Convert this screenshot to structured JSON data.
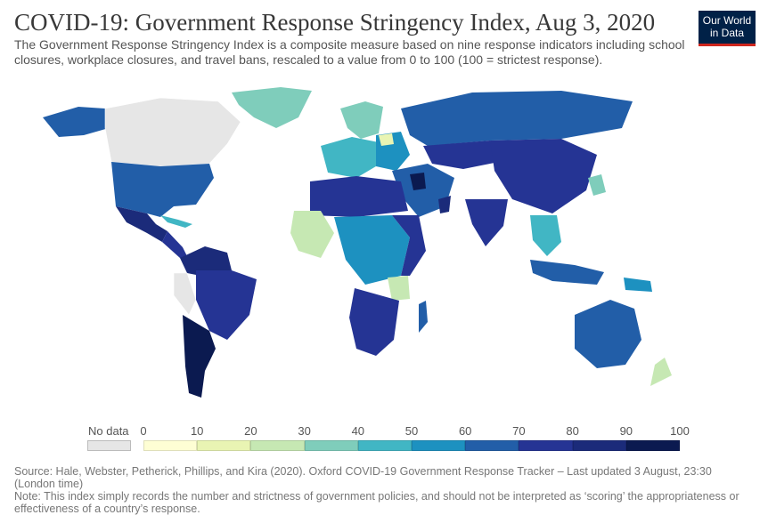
{
  "title": "COVID-19: Government Response Stringency Index, Aug 3, 2020",
  "subtitle": "The Government Response Stringency Index is a composite measure based on nine response indicators including school closures, workplace closures, and travel bans, rescaled to a value from 0 to 100 (100 = strictest response).",
  "logo": {
    "line1": "Our World",
    "line2": "in Data"
  },
  "legend": {
    "no_data_label": "No data",
    "ticks": [
      "0",
      "10",
      "20",
      "30",
      "40",
      "50",
      "60",
      "70",
      "80",
      "90",
      "100"
    ],
    "colors": [
      "#fefed4",
      "#e9f4b3",
      "#c6e8b3",
      "#7fcdbb",
      "#41b6c4",
      "#1d91c0",
      "#225ea8",
      "#253494",
      "#1b2b7a",
      "#0b1a50"
    ],
    "no_data_color": "#e6e6e6"
  },
  "source": "Source: Hale, Webster, Petherick, Phillips, and Kira (2020). Oxford COVID-19 Government Response Tracker – Last updated 3 August, 23:30 (London time)",
  "note": "Note: This index simply records the number and strictness of government policies, and should not be interpreted as ‘scoring’ the appropriateness or effectiveness of a country’s response."
}
